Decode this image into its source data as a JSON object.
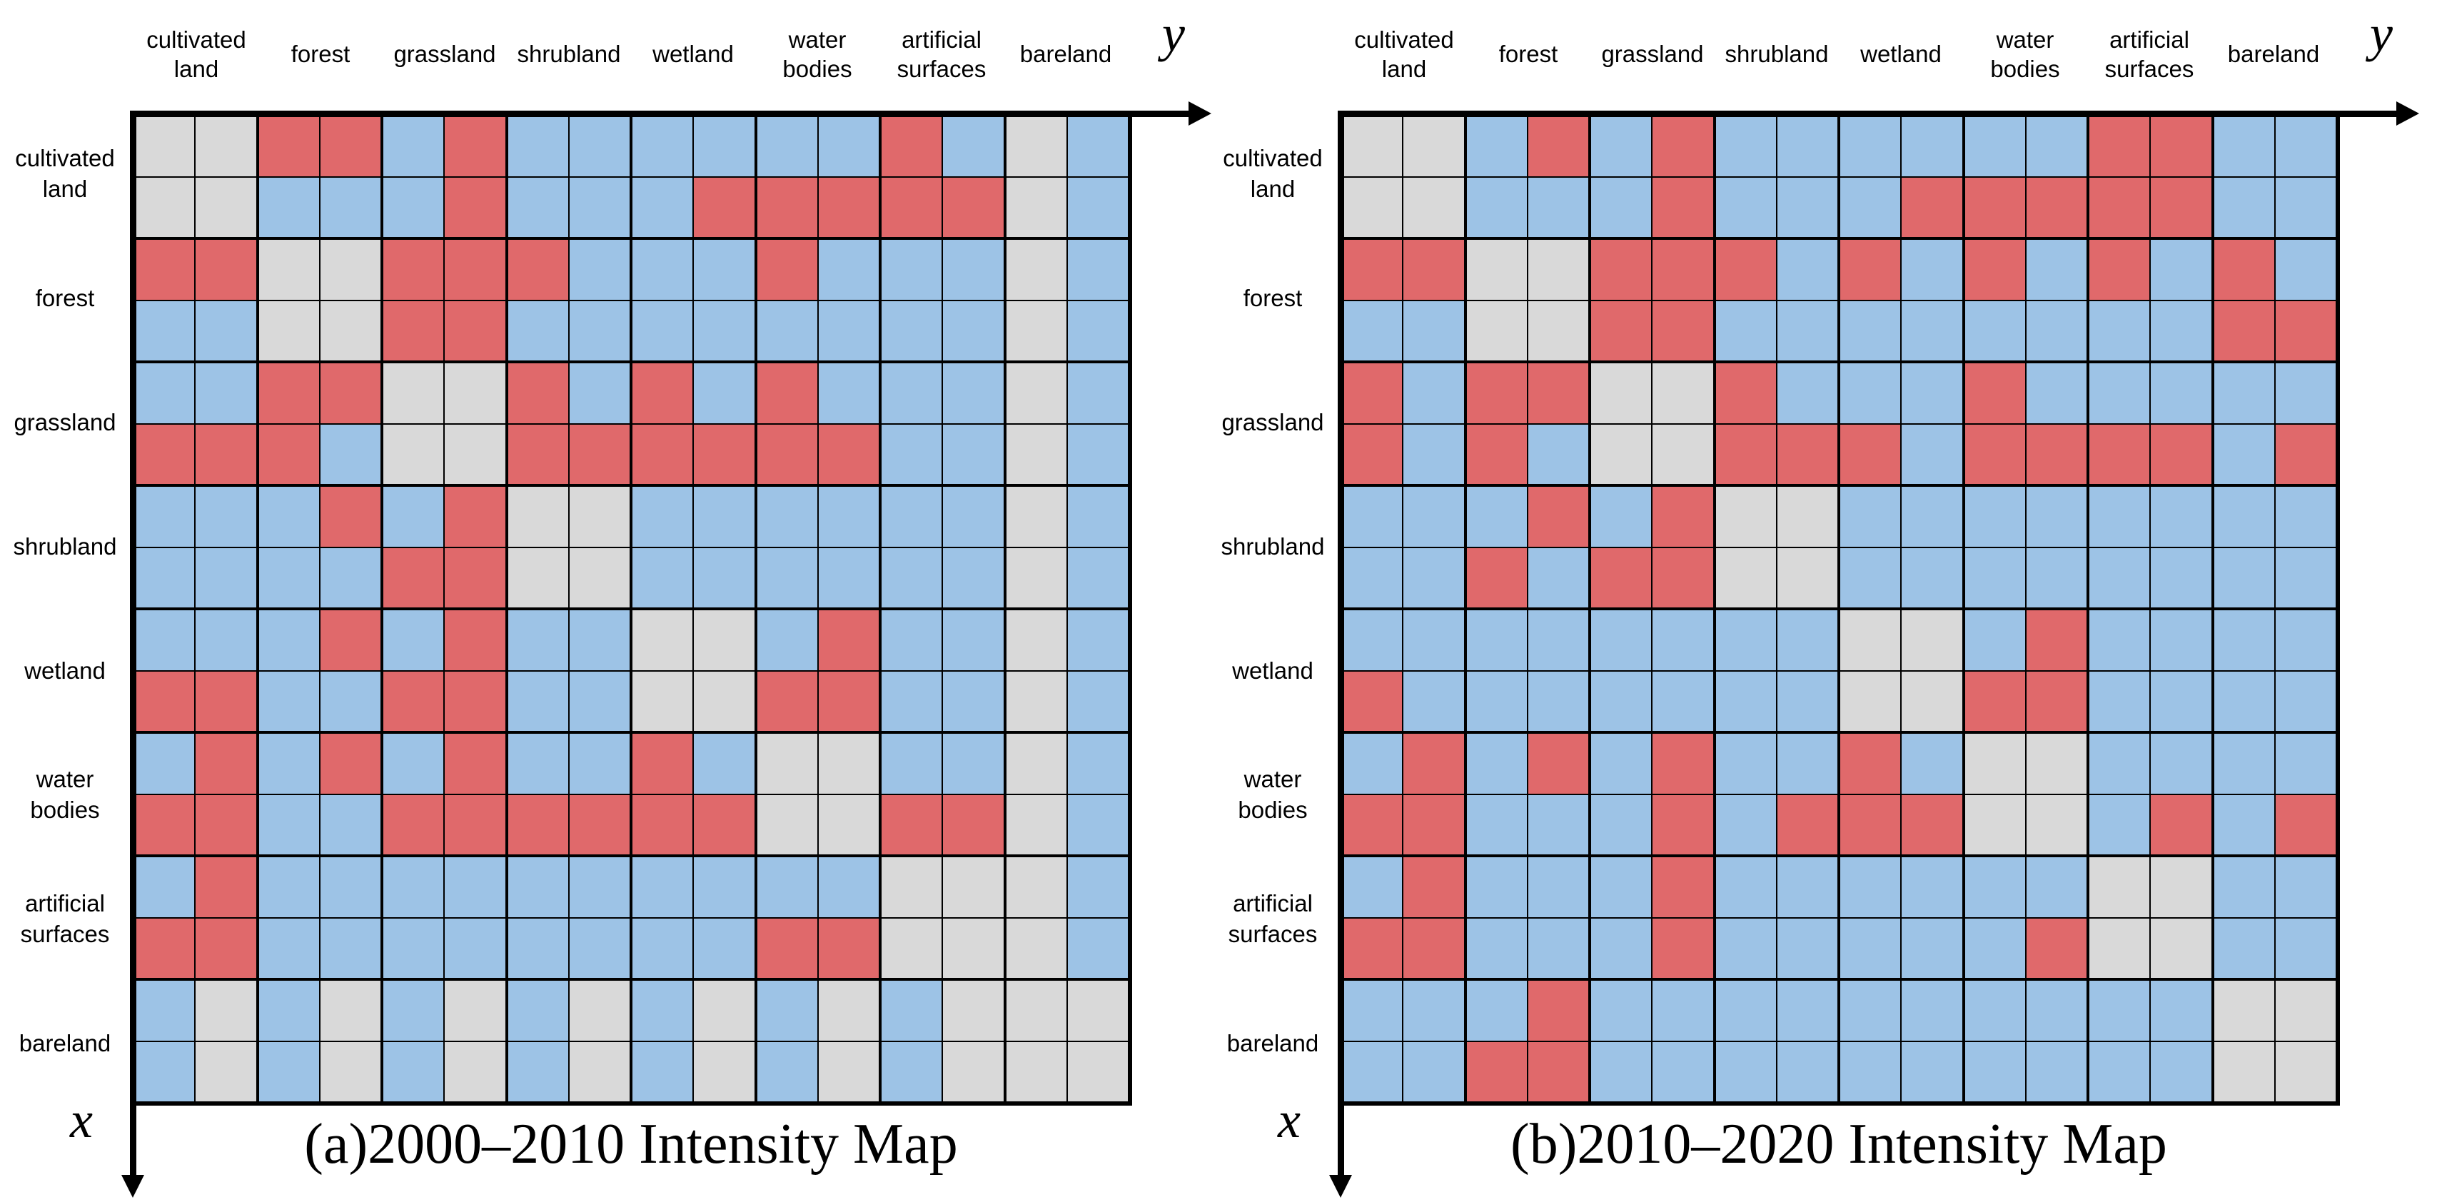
{
  "ui": {
    "axis_labels": {
      "x": "x",
      "y": "y"
    },
    "palette": {
      "blue": "#9DC3E6",
      "red": "#E0696B",
      "gray": "#D9D9D9",
      "line": "#000000",
      "background": "#FFFFFF"
    },
    "column_headers": [
      "cultivated\nland",
      "forest",
      "grassland",
      "shrubland",
      "wetland",
      "water\nbodies",
      "artificial\nsurfaces",
      "bareland"
    ],
    "row_labels": [
      "cultivated\nland",
      "forest",
      "grassland",
      "shrubland",
      "wetland",
      "water\nbodies",
      "artificial\nsurfaces",
      "bareland"
    ]
  },
  "chart_data": [
    {
      "type": "heatmap",
      "title": "(a)2000–2010 Intensity Map",
      "x_axis_arrow_label": "y",
      "y_axis_arrow_label": "x",
      "categories": [
        "cultivated land",
        "forest",
        "grassland",
        "shrubland",
        "wetland",
        "water bodies",
        "artificial surfaces",
        "bareland"
      ],
      "cells_per_category": 2,
      "grid_size": 16,
      "color_key": {
        "b": "blue",
        "r": "red",
        "g": "gray"
      },
      "rows": [
        "ggrrbrbbbbbbrbgb",
        "ggbbbrbbbrrrrrgb",
        "rrggrrrbbbrbbbgb",
        "bbggrrbbbbbbbbgb",
        "bbrrggrbrbrbbbgb",
        "rrrbggrrrrrrbbgb",
        "bbbrbrggbbbbbbgb",
        "bbbbrrggbbbbbbgb",
        "bbbrbrbbggbrbbgb",
        "rrbbrrbbggrrbbgb",
        "brbrbrbbrbggbbgb",
        "rrbbrrrrrrggrrgb",
        "brbbbbbbbbbbgggb",
        "rrbbbbbbbbrrgggb",
        "bgbgbgbgbgbgbggg",
        "bgbgbgbgbgbgbggg"
      ]
    },
    {
      "type": "heatmap",
      "title": "(b)2010–2020 Intensity Map",
      "x_axis_arrow_label": "y",
      "y_axis_arrow_label": "x",
      "categories": [
        "cultivated land",
        "forest",
        "grassland",
        "shrubland",
        "wetland",
        "water bodies",
        "artificial surfaces",
        "bareland"
      ],
      "cells_per_category": 2,
      "grid_size": 16,
      "color_key": {
        "b": "blue",
        "r": "red",
        "g": "gray"
      },
      "rows": [
        "ggbrbrbbbbbbrrbb",
        "ggbbbrbbbrrrrrbb",
        "rrggrrrbrbrbrbrb",
        "bbggrrbbbbbbbbrr",
        "rbrrggrbbbrbbbbb",
        "rbrbggrrrbrrrrbr",
        "bbbrbrggbbbbbbbb",
        "bbrbrrggbbbbbbbb",
        "bbbbbbbbggbrbbbb",
        "rbbbbbbbggrrbbbb",
        "brbrbrbbrbggbbbb",
        "rrbbbrbrrrggbrbr",
        "brbbbrbbbbbbggbb",
        "rrbbbrbbbbbrggbb",
        "bbbrbbbbbbbbbbgg",
        "bbrrbbbbbbbbbbgg"
      ]
    }
  ]
}
